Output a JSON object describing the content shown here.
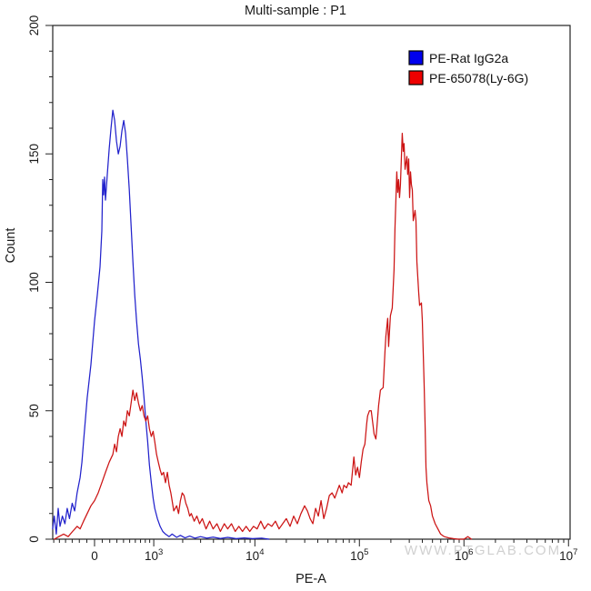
{
  "title": "Multi-sample : P1",
  "watermark": "WWW.PTGLAB.COM",
  "legend": {
    "position": "top-right",
    "items": [
      {
        "label": "PE-Rat IgG2a",
        "swatch_color": "#0000ee"
      },
      {
        "label": "PE-65078(Ly-6G)",
        "swatch_color": "#ee0000"
      }
    ]
  },
  "chart_data": {
    "type": "line",
    "subtype": "flow-cytometry-histogram",
    "title": "Multi-sample : P1",
    "xlabel": "PE-A",
    "ylabel": "Count",
    "ylim": [
      0,
      200
    ],
    "y_major_tick_step": 50,
    "y_minor_tick_step": 10,
    "grid": false,
    "legend_position": "top-right",
    "x_scale": {
      "type": "biexponential",
      "asinh_cofactor": 586,
      "zero_frac": 0.0808,
      "decade_frac": 0.2021,
      "domain": [
        -620,
        10000000
      ]
    },
    "x_ticks": [
      {
        "value": 0,
        "label": "0"
      },
      {
        "value": 1000,
        "label": "10^3"
      },
      {
        "value": 10000,
        "label": "10^4"
      },
      {
        "value": 100000,
        "label": "10^5"
      },
      {
        "value": 1000000,
        "label": "10^6"
      },
      {
        "value": 10000000,
        "label": "10^7"
      }
    ],
    "x_minor_ticks": {
      "linear_step": 100,
      "linear_range": [
        -600,
        900
      ],
      "log_decades": [
        3,
        6
      ],
      "log_multiples": [
        2,
        3,
        4,
        5,
        6,
        7,
        8,
        9
      ]
    },
    "series": [
      {
        "name": "PE-Rat IgG2a",
        "line_color": "#2222cc",
        "points": [
          [
            -620,
            4
          ],
          [
            -590,
            9
          ],
          [
            -555,
            2
          ],
          [
            -520,
            12
          ],
          [
            -490,
            5
          ],
          [
            -450,
            9
          ],
          [
            -410,
            6
          ],
          [
            -375,
            12
          ],
          [
            -340,
            8
          ],
          [
            -300,
            14
          ],
          [
            -265,
            11
          ],
          [
            -230,
            18
          ],
          [
            -190,
            24
          ],
          [
            -165,
            30
          ],
          [
            -143,
            38
          ],
          [
            -95,
            55
          ],
          [
            -47,
            68
          ],
          [
            0,
            85
          ],
          [
            35,
            95
          ],
          [
            71,
            106
          ],
          [
            95,
            120
          ],
          [
            107,
            140
          ],
          [
            119,
            134
          ],
          [
            131,
            141
          ],
          [
            143,
            132
          ],
          [
            167,
            142
          ],
          [
            192,
            152
          ],
          [
            217,
            160
          ],
          [
            242,
            167
          ],
          [
            268,
            163
          ],
          [
            294,
            155
          ],
          [
            321,
            150
          ],
          [
            348,
            153
          ],
          [
            375,
            159
          ],
          [
            404,
            163
          ],
          [
            433,
            158
          ],
          [
            462,
            148
          ],
          [
            493,
            136
          ],
          [
            524,
            122
          ],
          [
            557,
            108
          ],
          [
            590,
            95
          ],
          [
            623,
            85
          ],
          [
            660,
            76
          ],
          [
            697,
            70
          ],
          [
            734,
            63
          ],
          [
            772,
            55
          ],
          [
            812,
            46
          ],
          [
            853,
            38
          ],
          [
            894,
            29
          ],
          [
            938,
            22
          ],
          [
            983,
            16
          ],
          [
            1026,
            12
          ],
          [
            1095,
            8
          ],
          [
            1172,
            5
          ],
          [
            1251,
            3
          ],
          [
            1335,
            2
          ],
          [
            1458,
            1
          ],
          [
            1565,
            2
          ],
          [
            1739,
            0.7
          ],
          [
            1896,
            1.5
          ],
          [
            2110,
            0.5
          ],
          [
            2344,
            1.2
          ],
          [
            2650,
            0.4
          ],
          [
            2990,
            1
          ],
          [
            3446,
            0.4
          ],
          [
            3973,
            0.8
          ],
          [
            4665,
            0.3
          ],
          [
            5479,
            0.7
          ],
          [
            6610,
            0.2
          ],
          [
            7923,
            0.5
          ],
          [
            9493,
            0.2
          ],
          [
            11610,
            0.4
          ],
          [
            13630,
            0
          ]
        ]
      },
      {
        "name": "PE-65078(Ly-6G)",
        "line_color": "#cc1414",
        "points": [
          [
            -590,
            0
          ],
          [
            -510,
            1
          ],
          [
            -430,
            2
          ],
          [
            -360,
            1
          ],
          [
            -295,
            3
          ],
          [
            -230,
            5
          ],
          [
            -190,
            4
          ],
          [
            -143,
            7
          ],
          [
            -95,
            10
          ],
          [
            -47,
            13
          ],
          [
            0,
            15
          ],
          [
            47,
            18
          ],
          [
            95,
            22
          ],
          [
            143,
            26
          ],
          [
            192,
            30
          ],
          [
            242,
            33
          ],
          [
            268,
            37
          ],
          [
            294,
            34
          ],
          [
            321,
            40
          ],
          [
            348,
            43
          ],
          [
            375,
            40
          ],
          [
            404,
            46
          ],
          [
            433,
            44
          ],
          [
            462,
            50
          ],
          [
            493,
            48
          ],
          [
            524,
            53
          ],
          [
            557,
            58
          ],
          [
            590,
            54
          ],
          [
            623,
            57
          ],
          [
            660,
            53
          ],
          [
            697,
            50
          ],
          [
            734,
            52
          ],
          [
            772,
            48
          ],
          [
            812,
            46
          ],
          [
            853,
            48
          ],
          [
            894,
            43
          ],
          [
            938,
            40
          ],
          [
            983,
            42
          ],
          [
            1026,
            38
          ],
          [
            1074,
            33
          ],
          [
            1120,
            30
          ],
          [
            1172,
            27
          ],
          [
            1222,
            25
          ],
          [
            1276,
            26
          ],
          [
            1335,
            22
          ],
          [
            1398,
            26
          ],
          [
            1458,
            21
          ],
          [
            1519,
            18
          ],
          [
            1565,
            15
          ],
          [
            1627,
            11
          ],
          [
            1739,
            13
          ],
          [
            1818,
            10
          ],
          [
            1896,
            15
          ],
          [
            1977,
            18
          ],
          [
            2062,
            17
          ],
          [
            2151,
            14
          ],
          [
            2244,
            12
          ],
          [
            2344,
            9
          ],
          [
            2435,
            10
          ],
          [
            2596,
            7
          ],
          [
            2758,
            9
          ],
          [
            2933,
            6
          ],
          [
            3118,
            8
          ],
          [
            3387,
            4
          ],
          [
            3678,
            7
          ],
          [
            3973,
            4
          ],
          [
            4325,
            6
          ],
          [
            4665,
            3
          ],
          [
            5086,
            6
          ],
          [
            5479,
            4
          ],
          [
            5971,
            6
          ],
          [
            6475,
            3
          ],
          [
            7020,
            5
          ],
          [
            7612,
            3
          ],
          [
            8251,
            5
          ],
          [
            8930,
            3
          ],
          [
            9692,
            5
          ],
          [
            10510,
            4
          ],
          [
            11390,
            7
          ],
          [
            12340,
            4
          ],
          [
            13380,
            6
          ],
          [
            14500,
            5
          ],
          [
            15720,
            7
          ],
          [
            17030,
            4
          ],
          [
            18470,
            6
          ],
          [
            20010,
            8
          ],
          [
            21690,
            5
          ],
          [
            23510,
            9
          ],
          [
            25490,
            6
          ],
          [
            27620,
            10
          ],
          [
            29940,
            13
          ],
          [
            31800,
            11
          ],
          [
            33780,
            8
          ],
          [
            35880,
            6
          ],
          [
            38110,
            12
          ],
          [
            40490,
            9
          ],
          [
            43000,
            15
          ],
          [
            45680,
            8
          ],
          [
            48520,
            12
          ],
          [
            51540,
            17
          ],
          [
            54740,
            18
          ],
          [
            58150,
            16
          ],
          [
            61760,
            19
          ],
          [
            64310,
            21
          ],
          [
            68330,
            18
          ],
          [
            71020,
            21
          ],
          [
            75420,
            20
          ],
          [
            78530,
            22
          ],
          [
            83430,
            21
          ],
          [
            88600,
            32
          ],
          [
            92240,
            25
          ],
          [
            96030,
            28
          ],
          [
            99990,
            24
          ],
          [
            104100,
            30
          ],
          [
            108400,
            35
          ],
          [
            112800,
            37
          ],
          [
            117500,
            45
          ],
          [
            119800,
            48
          ],
          [
            124800,
            50
          ],
          [
            129900,
            50
          ],
          [
            135300,
            44
          ],
          [
            138200,
            41
          ],
          [
            143700,
            39
          ],
          [
            146700,
            43
          ],
          [
            152700,
            52
          ],
          [
            158900,
            58
          ],
          [
            168700,
            59
          ],
          [
            175600,
            73
          ],
          [
            179100,
            79
          ],
          [
            186500,
            86
          ],
          [
            190300,
            75
          ],
          [
            198000,
            87
          ],
          [
            206100,
            90
          ],
          [
            214500,
            105
          ],
          [
            218900,
            121
          ],
          [
            223400,
            132
          ],
          [
            227900,
            143
          ],
          [
            232500,
            135
          ],
          [
            237300,
            140
          ],
          [
            242000,
            133
          ],
          [
            247000,
            138
          ],
          [
            257100,
            158
          ],
          [
            262500,
            151
          ],
          [
            267600,
            154
          ],
          [
            273400,
            144
          ],
          [
            284600,
            149
          ],
          [
            290000,
            142
          ],
          [
            296300,
            148
          ],
          [
            302000,
            133
          ],
          [
            308500,
            143
          ],
          [
            314400,
            138
          ],
          [
            321100,
            136
          ],
          [
            327300,
            124
          ],
          [
            340700,
            128
          ],
          [
            347700,
            124
          ],
          [
            354700,
            108
          ],
          [
            369300,
            96
          ],
          [
            376800,
            91
          ],
          [
            392200,
            92
          ],
          [
            400200,
            85
          ],
          [
            416600,
            60
          ],
          [
            425000,
            45
          ],
          [
            433700,
            28
          ],
          [
            442400,
            22
          ],
          [
            460600,
            15
          ],
          [
            479500,
            13
          ],
          [
            499300,
            9
          ],
          [
            530400,
            6
          ],
          [
            563400,
            4
          ],
          [
            598400,
            2
          ],
          [
            648500,
            1
          ],
          [
            717100,
            0.5
          ],
          [
            793000,
            0.2
          ],
          [
            876800,
            0
          ],
          [
            1000000,
            0
          ],
          [
            1090000,
            1
          ],
          [
            1180000,
            0
          ]
        ]
      }
    ]
  }
}
